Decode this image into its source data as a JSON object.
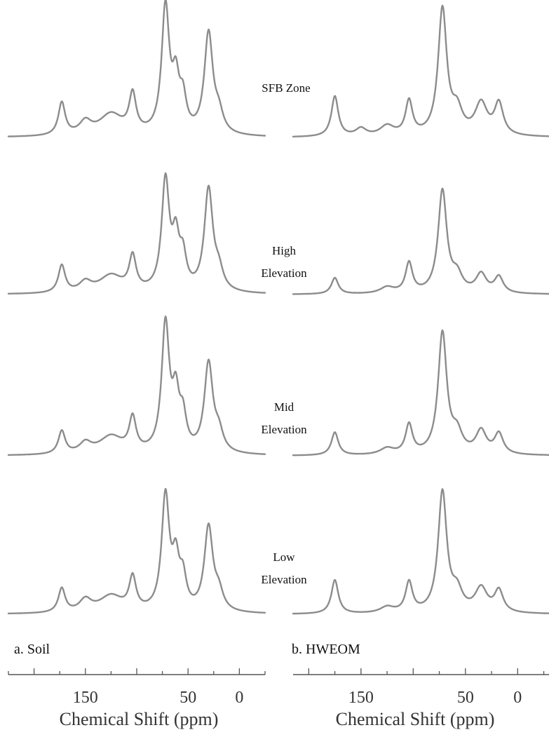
{
  "chart_data": [
    {
      "type": "line",
      "panel_label": "a. Soil",
      "xlabel": "Chemical Shift (ppm)",
      "ylabel": "",
      "x_axis_reversed": true,
      "xlim": [
        225,
        -25
      ],
      "xticks": [
        150,
        50,
        0
      ],
      "xtick_labels": [
        "150",
        "50",
        "0"
      ],
      "series": [
        {
          "name": "SFB Zone",
          "peaks": [
            {
              "ppm": 173,
              "h": 0.26,
              "w": 4
            },
            {
              "ppm": 150,
              "h": 0.1,
              "w": 7
            },
            {
              "ppm": 125,
              "h": 0.17,
              "w": 14
            },
            {
              "ppm": 104,
              "h": 0.3,
              "w": 4
            },
            {
              "ppm": 72,
              "h": 1.0,
              "w": 4.5
            },
            {
              "ppm": 62,
              "h": 0.38,
              "w": 4
            },
            {
              "ppm": 55,
              "h": 0.25,
              "w": 4
            },
            {
              "ppm": 30,
              "h": 0.8,
              "w": 5
            },
            {
              "ppm": 20,
              "h": 0.14,
              "w": 5
            }
          ]
        },
        {
          "name": "High Elevation",
          "peaks": [
            {
              "ppm": 173,
              "h": 0.22,
              "w": 4
            },
            {
              "ppm": 150,
              "h": 0.08,
              "w": 7
            },
            {
              "ppm": 125,
              "h": 0.14,
              "w": 14
            },
            {
              "ppm": 104,
              "h": 0.27,
              "w": 4
            },
            {
              "ppm": 72,
              "h": 0.88,
              "w": 4.5
            },
            {
              "ppm": 62,
              "h": 0.38,
              "w": 4
            },
            {
              "ppm": 55,
              "h": 0.25,
              "w": 4
            },
            {
              "ppm": 30,
              "h": 0.82,
              "w": 5
            },
            {
              "ppm": 20,
              "h": 0.14,
              "w": 5
            }
          ]
        },
        {
          "name": "Mid Elevation",
          "peaks": [
            {
              "ppm": 173,
              "h": 0.18,
              "w": 4
            },
            {
              "ppm": 150,
              "h": 0.08,
              "w": 7
            },
            {
              "ppm": 125,
              "h": 0.14,
              "w": 14
            },
            {
              "ppm": 104,
              "h": 0.26,
              "w": 4
            },
            {
              "ppm": 72,
              "h": 1.0,
              "w": 4.5
            },
            {
              "ppm": 62,
              "h": 0.4,
              "w": 4
            },
            {
              "ppm": 55,
              "h": 0.25,
              "w": 4
            },
            {
              "ppm": 30,
              "h": 0.7,
              "w": 5
            },
            {
              "ppm": 20,
              "h": 0.14,
              "w": 5
            }
          ]
        },
        {
          "name": "Low Elevation",
          "peaks": [
            {
              "ppm": 173,
              "h": 0.2,
              "w": 4
            },
            {
              "ppm": 150,
              "h": 0.1,
              "w": 7
            },
            {
              "ppm": 125,
              "h": 0.14,
              "w": 14
            },
            {
              "ppm": 104,
              "h": 0.27,
              "w": 4
            },
            {
              "ppm": 72,
              "h": 0.95,
              "w": 4.5
            },
            {
              "ppm": 62,
              "h": 0.38,
              "w": 4
            },
            {
              "ppm": 55,
              "h": 0.25,
              "w": 4
            },
            {
              "ppm": 30,
              "h": 0.7,
              "w": 5
            },
            {
              "ppm": 20,
              "h": 0.14,
              "w": 5
            }
          ]
        }
      ]
    },
    {
      "type": "line",
      "panel_label": "b. HWEOM",
      "xlabel": "Chemical Shift (ppm)",
      "ylabel": "",
      "x_axis_reversed": true,
      "xlim": [
        215,
        -30
      ],
      "xticks": [
        150,
        50,
        0
      ],
      "xtick_labels": [
        "150",
        "50",
        "0"
      ],
      "series": [
        {
          "name": "SFB Zone",
          "peaks": [
            {
              "ppm": 175,
              "h": 0.32,
              "w": 4
            },
            {
              "ppm": 150,
              "h": 0.06,
              "w": 6
            },
            {
              "ppm": 125,
              "h": 0.08,
              "w": 8
            },
            {
              "ppm": 104,
              "h": 0.27,
              "w": 4
            },
            {
              "ppm": 72,
              "h": 1.0,
              "w": 5
            },
            {
              "ppm": 58,
              "h": 0.18,
              "w": 6
            },
            {
              "ppm": 35,
              "h": 0.25,
              "w": 7
            },
            {
              "ppm": 18,
              "h": 0.25,
              "w": 5
            }
          ]
        },
        {
          "name": "High Elevation",
          "peaks": [
            {
              "ppm": 175,
              "h": 0.13,
              "w": 4
            },
            {
              "ppm": 125,
              "h": 0.05,
              "w": 8
            },
            {
              "ppm": 104,
              "h": 0.24,
              "w": 4
            },
            {
              "ppm": 72,
              "h": 0.82,
              "w": 5
            },
            {
              "ppm": 58,
              "h": 0.13,
              "w": 6
            },
            {
              "ppm": 35,
              "h": 0.15,
              "w": 6
            },
            {
              "ppm": 18,
              "h": 0.13,
              "w": 5
            }
          ]
        },
        {
          "name": "Mid Elevation",
          "peaks": [
            {
              "ppm": 175,
              "h": 0.18,
              "w": 4
            },
            {
              "ppm": 125,
              "h": 0.05,
              "w": 8
            },
            {
              "ppm": 104,
              "h": 0.23,
              "w": 4
            },
            {
              "ppm": 72,
              "h": 0.95,
              "w": 5
            },
            {
              "ppm": 58,
              "h": 0.15,
              "w": 6
            },
            {
              "ppm": 35,
              "h": 0.18,
              "w": 6
            },
            {
              "ppm": 18,
              "h": 0.16,
              "w": 5
            }
          ]
        },
        {
          "name": "Low Elevation",
          "peaks": [
            {
              "ppm": 175,
              "h": 0.28,
              "w": 4
            },
            {
              "ppm": 125,
              "h": 0.05,
              "w": 8
            },
            {
              "ppm": 104,
              "h": 0.25,
              "w": 4
            },
            {
              "ppm": 72,
              "h": 1.0,
              "w": 5
            },
            {
              "ppm": 58,
              "h": 0.16,
              "w": 6
            },
            {
              "ppm": 35,
              "h": 0.2,
              "w": 7
            },
            {
              "ppm": 18,
              "h": 0.18,
              "w": 5
            }
          ]
        }
      ]
    }
  ],
  "row_labels": [
    {
      "line1": "SFB  Zone",
      "line2": ""
    },
    {
      "line1": "High",
      "line2": "Elevation"
    },
    {
      "line1": "Mid",
      "line2": "Elevation"
    },
    {
      "line1": "Low",
      "line2": "Elevation"
    }
  ],
  "colors": {
    "trace": "#8c8c8c",
    "axis": "#555555",
    "text": "#111111"
  }
}
